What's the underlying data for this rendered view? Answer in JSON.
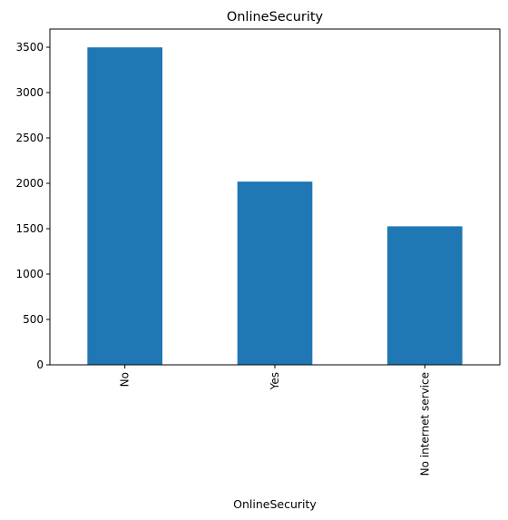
{
  "chart_data": {
    "type": "bar",
    "title": "OnlineSecurity",
    "xlabel": "OnlineSecurity",
    "ylabel": "",
    "categories": [
      "No",
      "Yes",
      "No internet service"
    ],
    "values": [
      3498,
      2019,
      1526
    ],
    "ylim": [
      0,
      3700
    ],
    "yticks": [
      0,
      500,
      1000,
      1500,
      2000,
      2500,
      3000,
      3500
    ],
    "bar_color": "#1f77b4",
    "grid": false,
    "legend": "none"
  }
}
